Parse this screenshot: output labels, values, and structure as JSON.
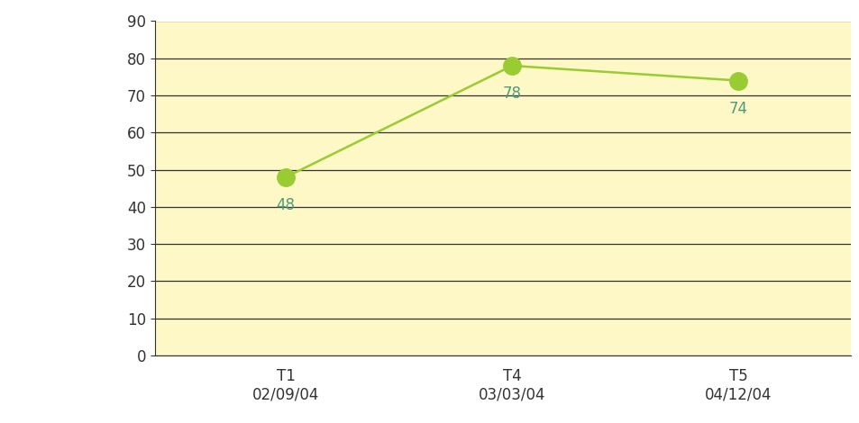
{
  "chart_data": {
    "type": "line",
    "categories": [
      "T1\n02/09/04",
      "T4\n03/03/04",
      "T5\n04/12/04"
    ],
    "values": [
      48,
      78,
      74
    ],
    "color": "#99cc33",
    "marker": "o",
    "line_style": "solid",
    "ylim": [
      0,
      90
    ],
    "yticks": [
      0,
      10,
      20,
      30,
      40,
      50,
      60,
      70,
      80,
      90
    ],
    "grid": true,
    "data_labels": true
  }
}
